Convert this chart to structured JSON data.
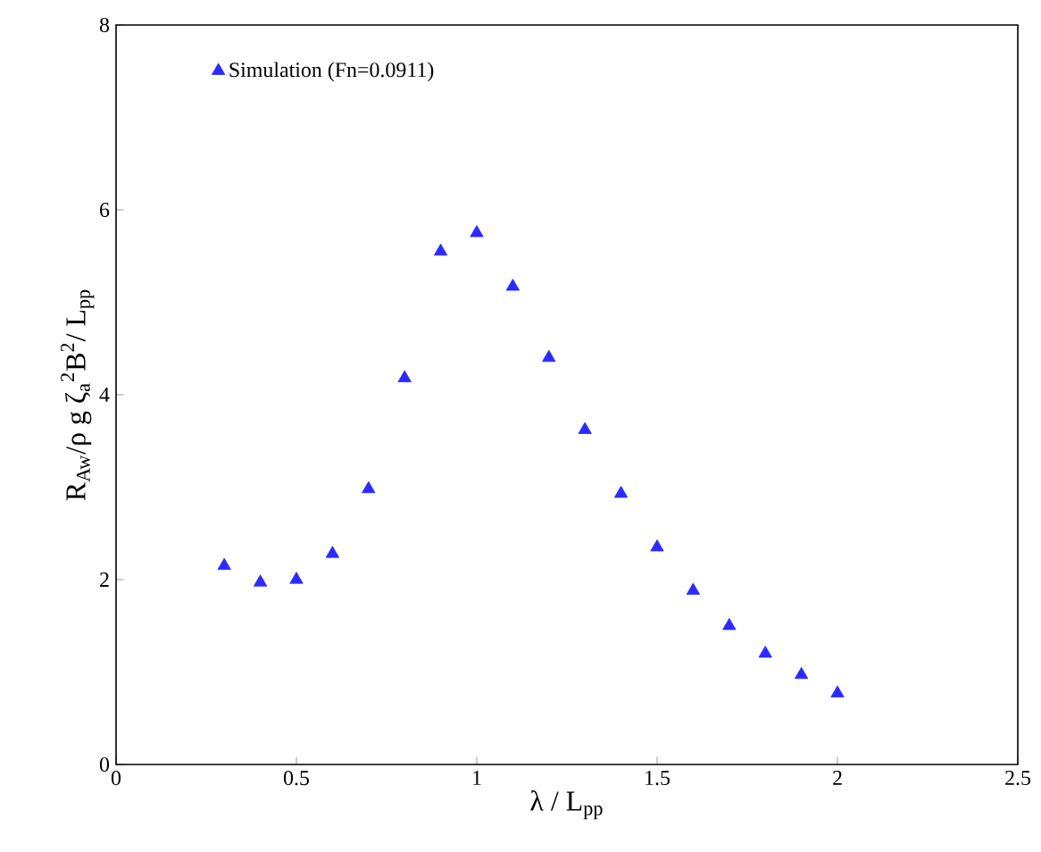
{
  "chart_data": {
    "type": "scatter",
    "xlabel": "λ / L$_{pp}$",
    "ylabel": "R$_{Aw}$/ρ g ζ$_{a}$$^{2}$B$^{2}$/ L$_{pp}$",
    "x": [
      0.3,
      0.4,
      0.5,
      0.6,
      0.7,
      0.8,
      0.9,
      1.0,
      1.1,
      1.2,
      1.3,
      1.4,
      1.5,
      1.6,
      1.7,
      1.8,
      1.9,
      2.0
    ],
    "series": [
      {
        "name": "Simulation (Fn=0.0911)",
        "color": "#2b2bff",
        "values": [
          2.15,
          1.97,
          2.0,
          2.28,
          2.98,
          4.18,
          5.55,
          5.75,
          5.17,
          4.4,
          3.62,
          2.93,
          2.35,
          1.88,
          1.5,
          1.2,
          0.97,
          0.77
        ]
      }
    ],
    "xlim": [
      0,
      2.5
    ],
    "ylim": [
      0,
      8
    ],
    "xticks": [
      0,
      0.5,
      1,
      1.5,
      2,
      2.5
    ],
    "yticks": [
      0,
      2,
      4,
      6,
      8
    ],
    "marker": "triangle",
    "legend": "top left",
    "grid": false
  }
}
